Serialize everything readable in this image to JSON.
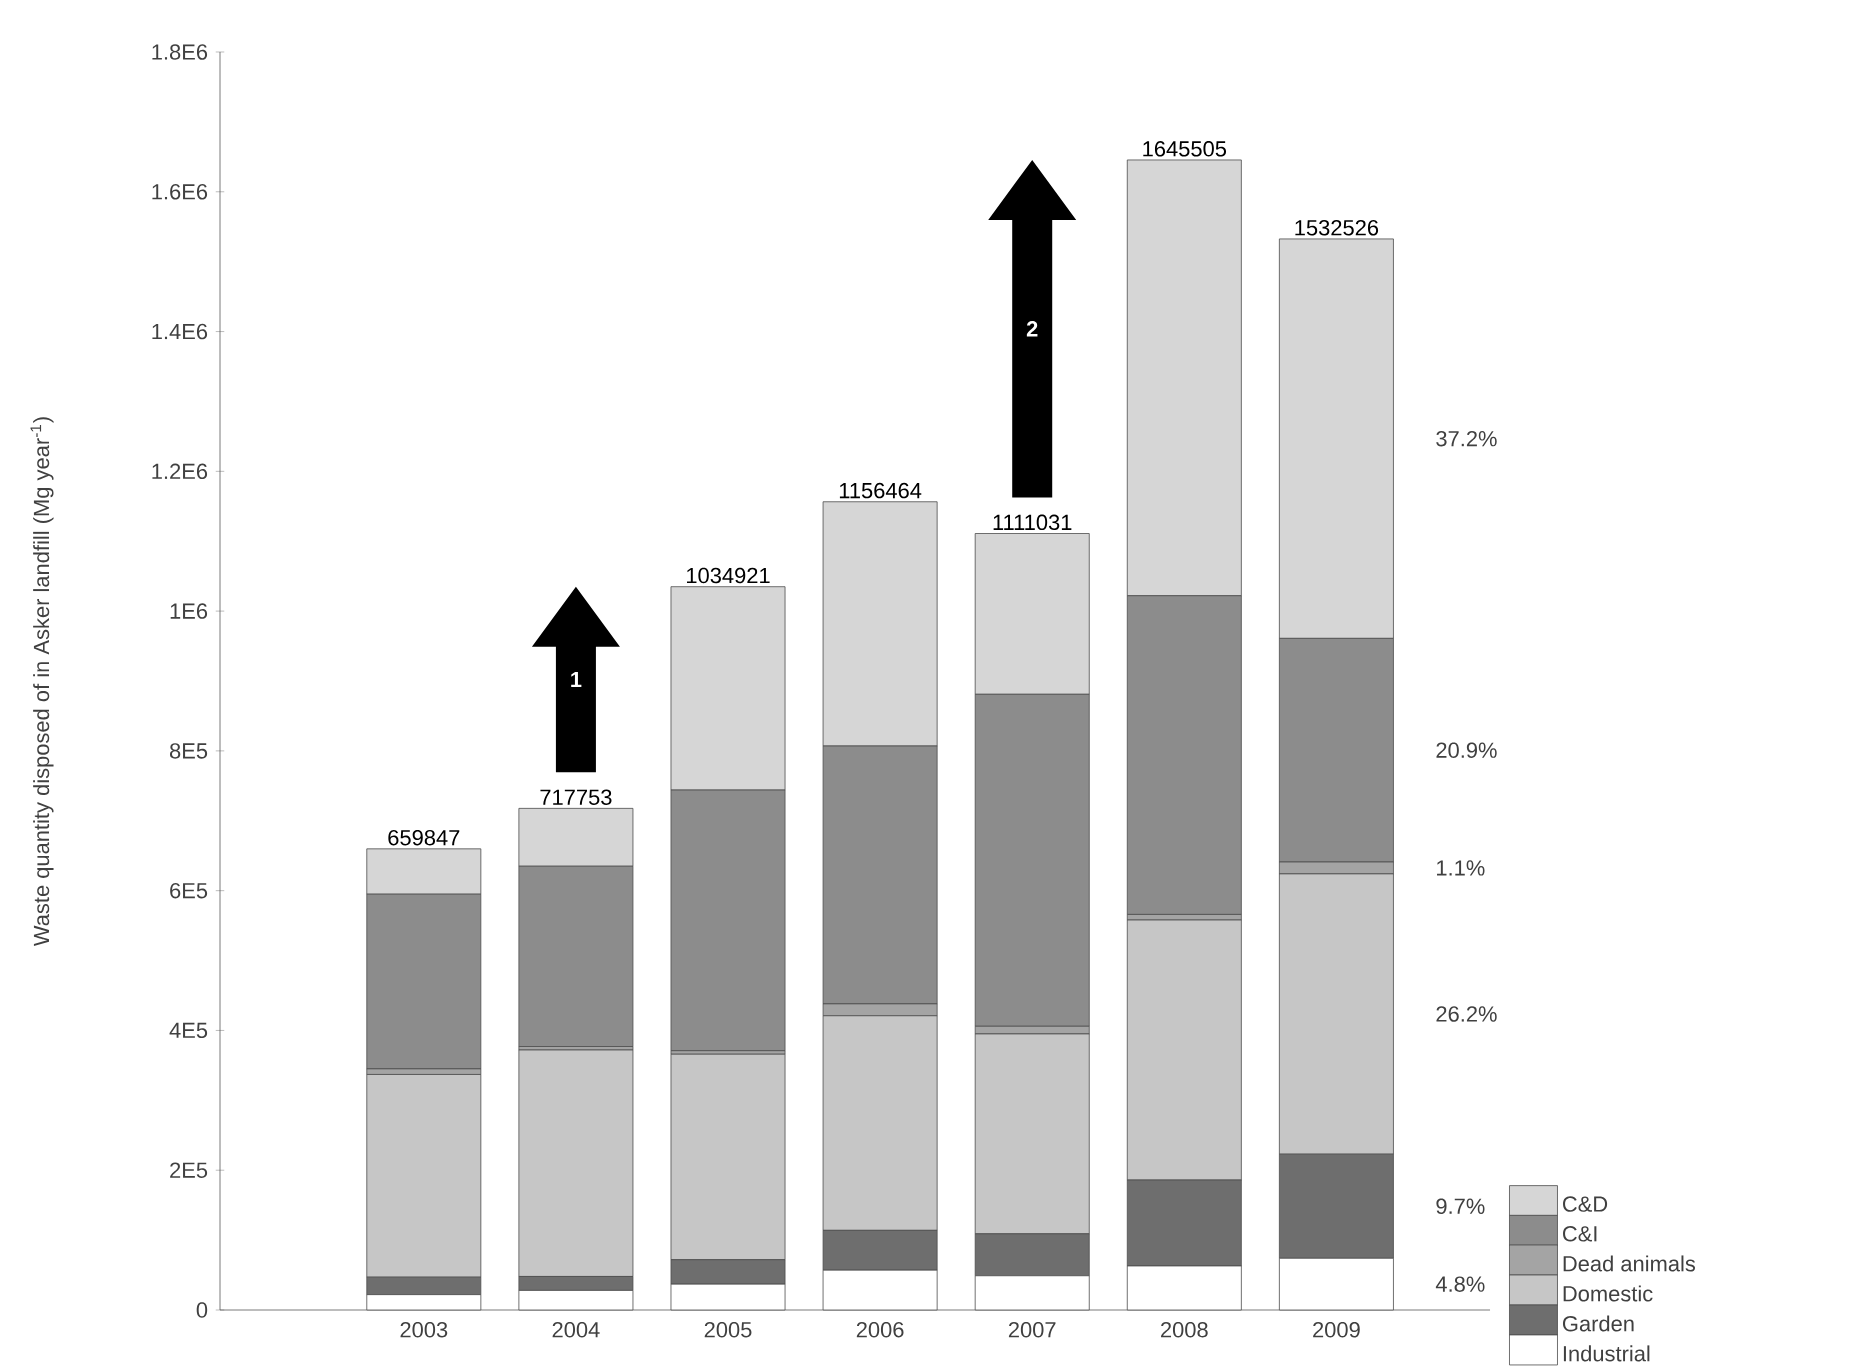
{
  "chart_data": {
    "type": "bar",
    "stacked": true,
    "ylabel": "Waste quantity disposed of in Asker landfill (Mg year$^{-1}$)",
    "categories": [
      "2003",
      "2004",
      "2005",
      "2006",
      "2007",
      "2008",
      "2009"
    ],
    "series": [
      {
        "name": "Industrial",
        "color": "#ffffff",
        "values": [
          22000,
          28000,
          37000,
          57000,
          49000,
          63000,
          74000
        ]
      },
      {
        "name": "Garden",
        "color": "#6e6e6e",
        "values": [
          25000,
          20000,
          35000,
          57000,
          60000,
          123000,
          149000
        ]
      },
      {
        "name": "Domestic",
        "color": "#c6c6c6",
        "values": [
          290000,
          324000,
          294000,
          307000,
          286000,
          372000,
          401000
        ]
      },
      {
        "name": "Dead animals",
        "color": "#a4a4a4",
        "values": [
          8000,
          5000,
          5000,
          17000,
          11000,
          8000,
          17000
        ]
      },
      {
        "name": "C&I",
        "color": "#8c8c8c",
        "values": [
          250000,
          258000,
          373000,
          369000,
          475000,
          456000,
          320000
        ]
      },
      {
        "name": "C&D",
        "color": "#d6d6d6",
        "values": [
          64847,
          82753,
          290921,
          349464,
          230031,
          623505,
          571526
        ]
      }
    ],
    "totals": [
      "659847",
      "717753",
      "1034921",
      "1156464",
      "1111031",
      "1645505",
      "1532526"
    ],
    "ylim": [
      0,
      1800000
    ],
    "yticks": [
      0,
      {
        "value": 200000,
        "label": "2E5"
      },
      {
        "value": 400000,
        "label": "4E5"
      },
      {
        "value": 600000,
        "label": "6E5"
      },
      {
        "value": 800000,
        "label": "8E5"
      },
      {
        "value": 1000000,
        "label": "1E6"
      },
      {
        "value": 1200000,
        "label": "1.2E6"
      },
      {
        "value": 1400000,
        "label": "1.4E6"
      },
      {
        "value": 1600000,
        "label": "1.6E6"
      },
      {
        "value": 1800000,
        "label": "1.8E6"
      }
    ],
    "annotations": [
      "1",
      "2",
      "37.2%",
      "20.9%",
      "1.1%",
      "26.2%",
      "9.7%",
      "4.8%"
    ],
    "legend": "bottom right"
  }
}
